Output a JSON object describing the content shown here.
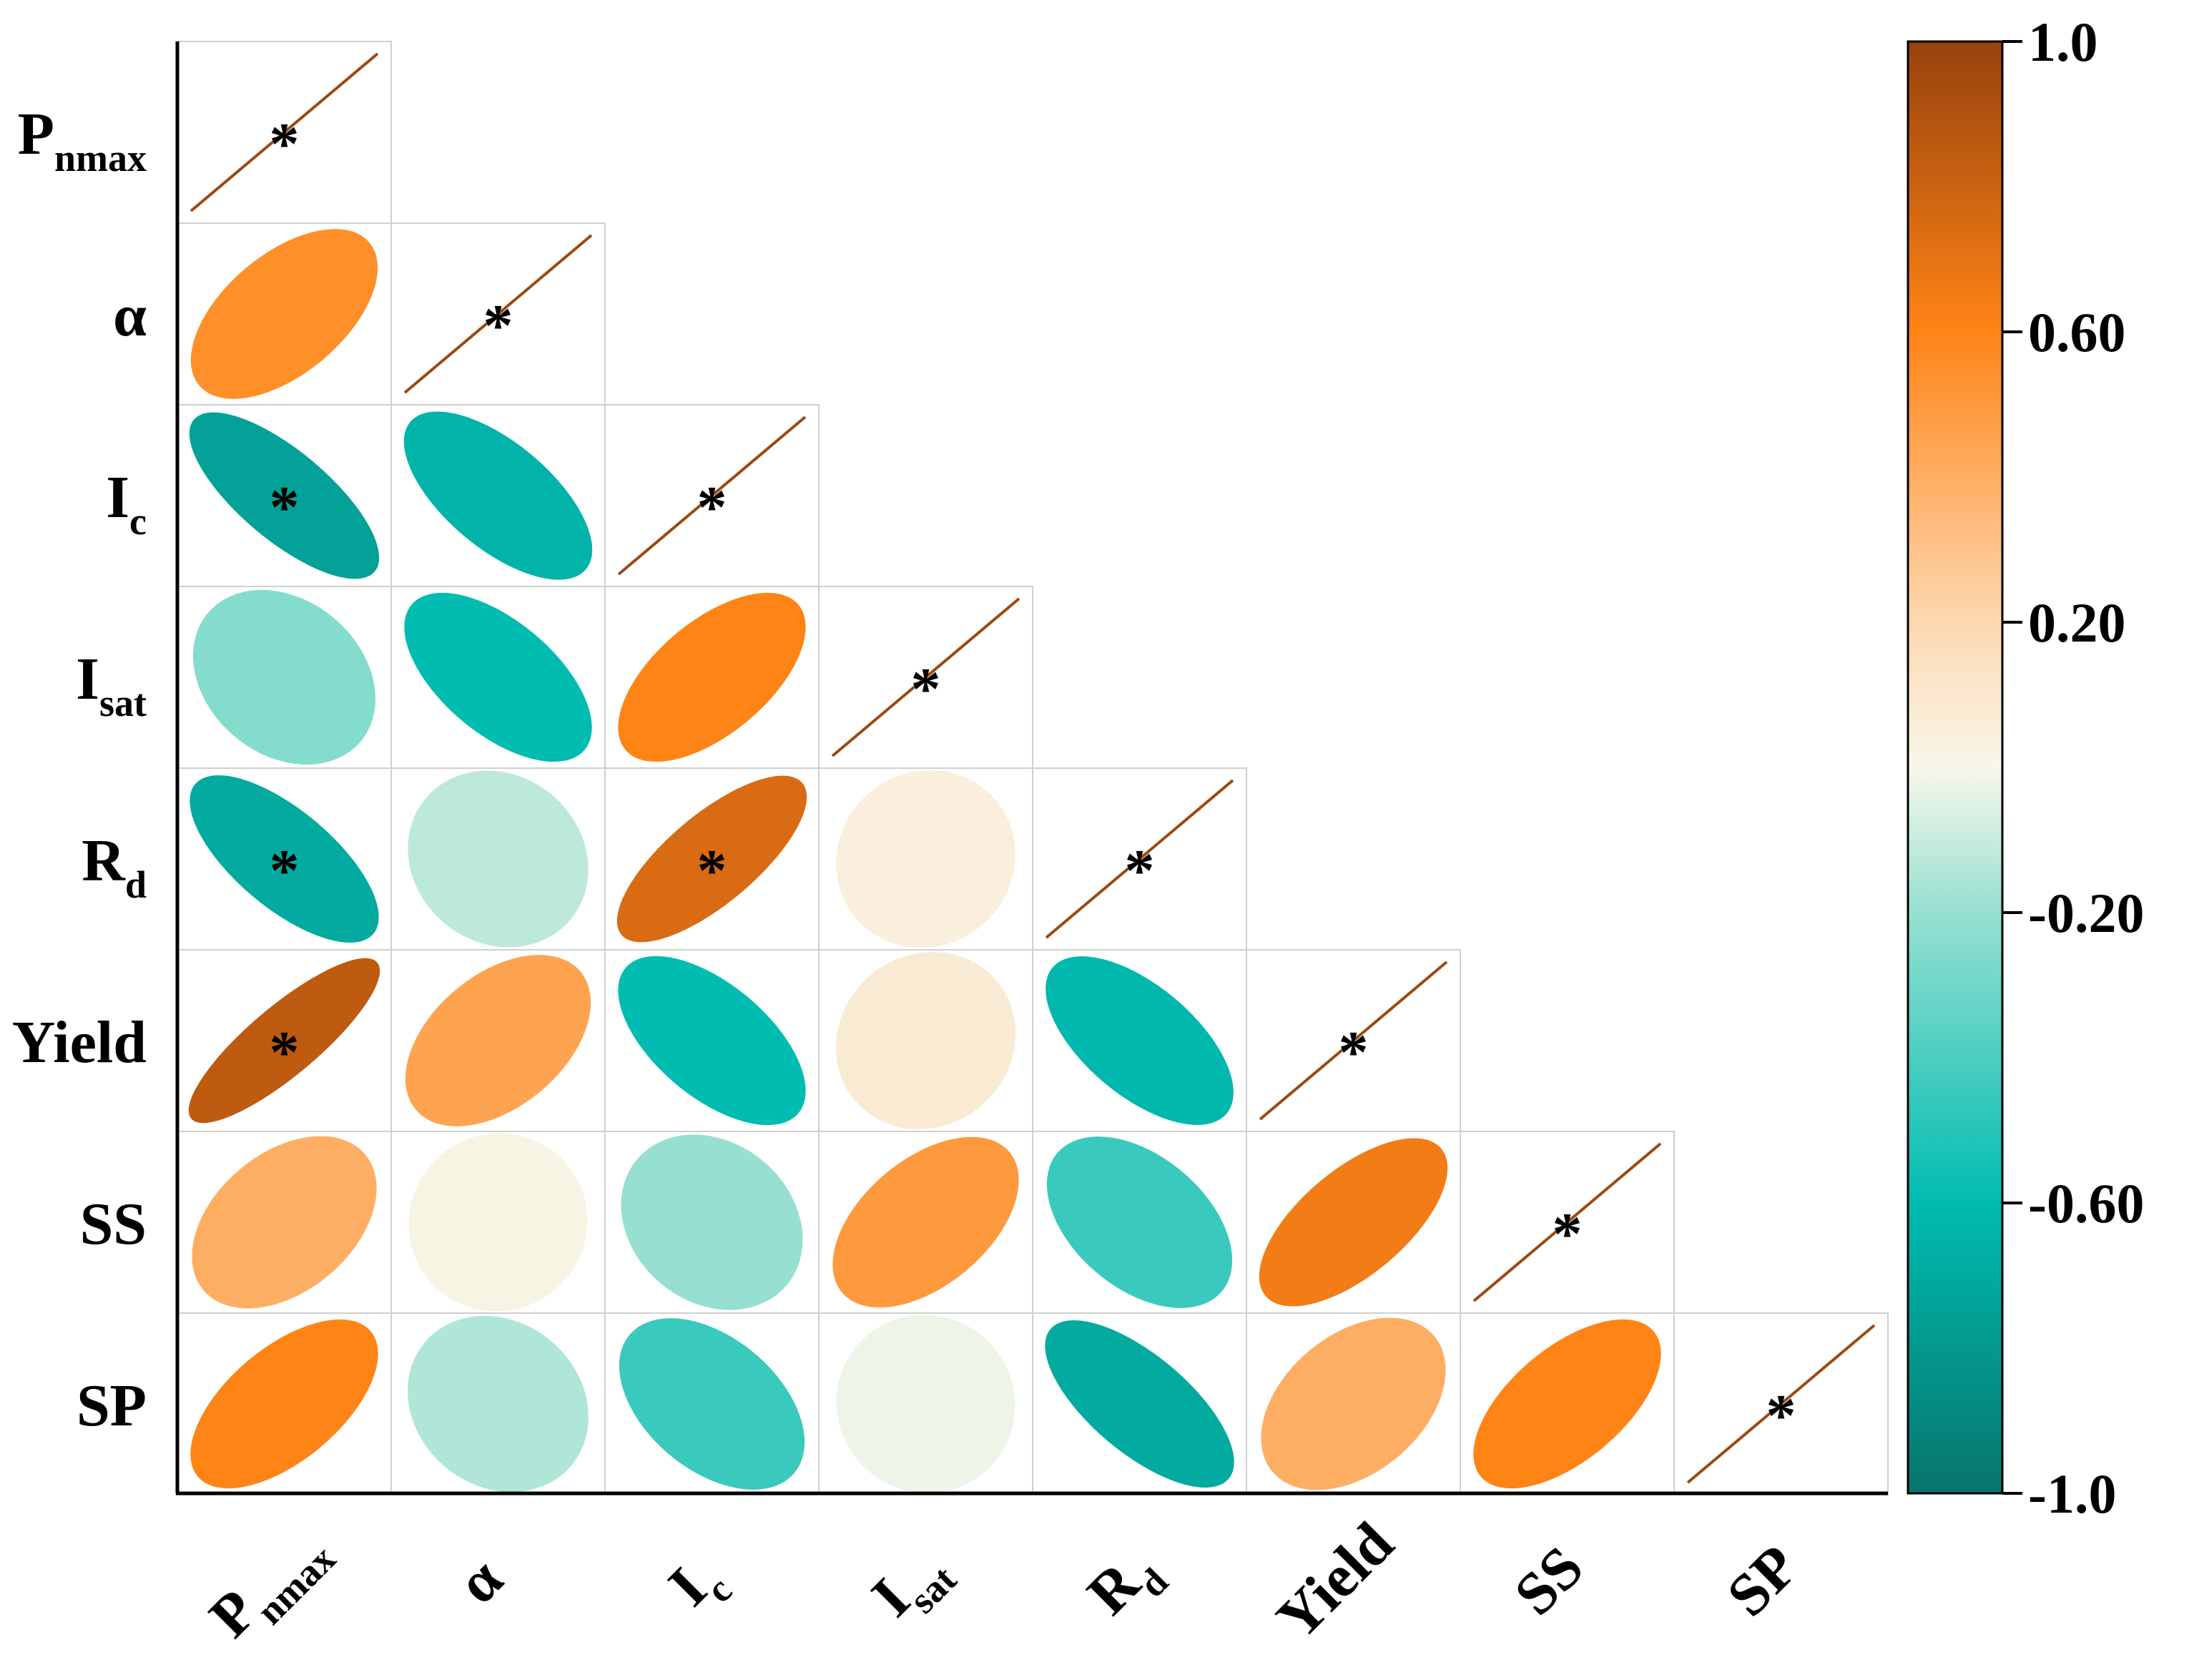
{
  "chart_data": {
    "type": "correlation-ellipse-matrix",
    "variables": [
      {
        "id": "Pnmax",
        "base": "P",
        "sub": "nmax"
      },
      {
        "id": "alpha",
        "base": "α",
        "sub": ""
      },
      {
        "id": "Ic",
        "base": "I",
        "sub": "c"
      },
      {
        "id": "Isat",
        "base": "I",
        "sub": "sat"
      },
      {
        "id": "Rd",
        "base": "R",
        "sub": "d"
      },
      {
        "id": "Yield",
        "base": "Yield",
        "sub": ""
      },
      {
        "id": "SS",
        "base": "SS",
        "sub": ""
      },
      {
        "id": "SP",
        "base": "SP",
        "sub": ""
      }
    ],
    "significance_marker": "*",
    "correlations": [
      [
        1.0
      ],
      [
        0.55,
        1.0
      ],
      [
        -0.75,
        -0.65,
        1.0
      ],
      [
        -0.25,
        -0.6,
        0.6,
        1.0
      ],
      [
        -0.7,
        -0.12,
        0.75,
        0.05,
        1.0
      ],
      [
        0.85,
        0.45,
        -0.6,
        0.08,
        -0.62,
        1.0
      ],
      [
        0.4,
        0.02,
        -0.2,
        0.5,
        -0.45,
        0.65,
        1.0
      ],
      [
        0.6,
        -0.15,
        -0.45,
        -0.02,
        -0.7,
        0.4,
        0.6,
        1.0
      ]
    ],
    "significant": [
      [
        true
      ],
      [
        false,
        true
      ],
      [
        true,
        false,
        true
      ],
      [
        false,
        false,
        false,
        true
      ],
      [
        true,
        false,
        true,
        false,
        true
      ],
      [
        true,
        false,
        false,
        false,
        false,
        true
      ],
      [
        false,
        false,
        false,
        false,
        false,
        false,
        true
      ],
      [
        false,
        false,
        false,
        false,
        false,
        false,
        false,
        true
      ]
    ],
    "colorbar": {
      "range": [
        -1.0,
        1.0
      ],
      "ticks": [
        {
          "value": 1.0,
          "label": "1.0"
        },
        {
          "value": 0.6,
          "label": "0.60"
        },
        {
          "value": 0.2,
          "label": "0.20"
        },
        {
          "value": -0.2,
          "label": "-0.20"
        },
        {
          "value": -0.6,
          "label": "-0.60"
        },
        {
          "value": -1.0,
          "label": "-1.0"
        }
      ],
      "color_stops": [
        {
          "value": -1.0,
          "color": "#07756c"
        },
        {
          "value": -0.6,
          "color": "#00bcb1"
        },
        {
          "value": -0.2,
          "color": "#97e0d1"
        },
        {
          "value": 0.0,
          "color": "#f7f7ea"
        },
        {
          "value": 0.2,
          "color": "#fdd8b1"
        },
        {
          "value": 0.6,
          "color": "#ff8416"
        },
        {
          "value": 1.0,
          "color": "#97420d"
        }
      ]
    },
    "diagonal_line_color": "#9a4a12"
  }
}
